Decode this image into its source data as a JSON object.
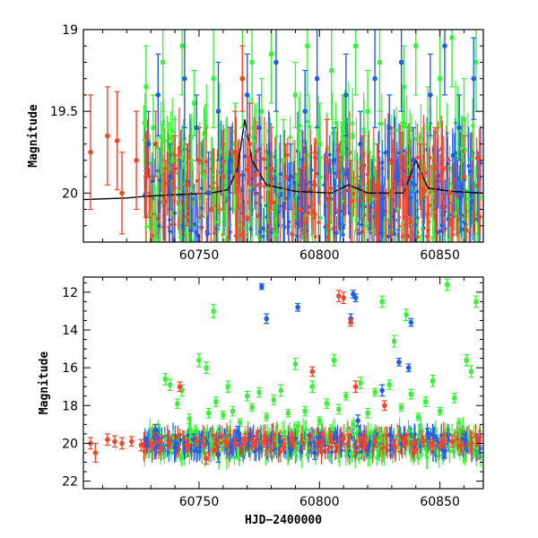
{
  "chart_data": [
    {
      "panel": "top",
      "type": "scatter",
      "title": "",
      "xlabel": "",
      "ylabel": "Magnitude",
      "xlim": [
        60702,
        60868
      ],
      "ylim": [
        20.3,
        19.0
      ],
      "y_inverted": true,
      "xticks": [
        60750,
        60800,
        60850
      ],
      "yticks": [
        19,
        19.5,
        20
      ],
      "ytick_labels": [
        "19",
        "19.5",
        "20"
      ],
      "grid": false,
      "legend": "none",
      "errorbars": true,
      "model_curve": {
        "color": "#000000",
        "x": [
          60702,
          60720,
          60728,
          60740,
          60755,
          60762,
          60766,
          60769,
          60772,
          60778,
          60790,
          60805,
          60812,
          60820,
          60835,
          60840,
          60845,
          60855,
          60868
        ],
        "y": [
          20.04,
          20.03,
          20.02,
          20.01,
          20.0,
          19.98,
          19.85,
          19.55,
          19.8,
          19.95,
          19.99,
          20.0,
          19.95,
          20.0,
          20.0,
          19.8,
          19.97,
          19.99,
          20.0
        ]
      },
      "series": [
        {
          "color": "#3bf03b",
          "marker": "square",
          "x": [
            60728,
            60731,
            60735,
            60740,
            60743,
            60748,
            60752,
            60756,
            60760,
            60765,
            60768,
            60772,
            60776,
            60780,
            60785,
            60790,
            60795,
            60800,
            60805,
            60810,
            60815,
            60820,
            60825,
            60830,
            60835,
            60840,
            60845,
            60850,
            60855,
            60860,
            60865
          ],
          "y": [
            19.35,
            19.6,
            19.2,
            19.8,
            19.1,
            19.45,
            19.9,
            19.3,
            20.1,
            19.7,
            19.3,
            19.2,
            19.5,
            19.15,
            19.8,
            19.4,
            19.1,
            19.7,
            19.25,
            19.6,
            19.1,
            19.5,
            19.2,
            19.8,
            19.35,
            19.1,
            19.6,
            19.3,
            19.05,
            19.55,
            19.2
          ],
          "err": [
            0.25,
            0.2,
            0.3,
            0.25,
            0.3,
            0.2,
            0.25,
            0.3,
            0.2,
            0.25,
            0.3,
            0.25,
            0.2,
            0.3,
            0.25,
            0.2,
            0.3,
            0.25,
            0.3,
            0.2,
            0.3,
            0.25,
            0.3,
            0.2,
            0.25,
            0.3,
            0.25,
            0.3,
            0.3,
            0.25,
            0.3
          ]
        },
        {
          "color": "#1e5fe8",
          "marker": "circle",
          "x": [
            60729,
            60733,
            60738,
            60744,
            60749,
            60754,
            60758,
            60763,
            60770,
            60775,
            60782,
            60788,
            60794,
            60799,
            60806,
            60811,
            60817,
            60823,
            60829,
            60834,
            60839,
            60846,
            60852,
            60858,
            60864
          ],
          "y": [
            19.7,
            19.4,
            19.9,
            19.3,
            19.6,
            20.0,
            19.5,
            19.8,
            19.4,
            19.6,
            19.2,
            19.9,
            19.5,
            19.3,
            19.8,
            19.4,
            19.7,
            19.3,
            19.6,
            19.2,
            19.8,
            19.4,
            19.1,
            19.6,
            19.3
          ],
          "err": [
            0.2,
            0.25,
            0.2,
            0.3,
            0.2,
            0.25,
            0.3,
            0.2,
            0.25,
            0.2,
            0.3,
            0.2,
            0.25,
            0.3,
            0.2,
            0.25,
            0.2,
            0.3,
            0.2,
            0.3,
            0.2,
            0.25,
            0.3,
            0.2,
            0.25
          ]
        },
        {
          "color": "#f5452d",
          "marker": "circle",
          "x": [
            60705,
            60712,
            60716,
            60718,
            60724,
            60728,
            60732,
            60736,
            60740,
            60745,
            60750,
            60755,
            60760,
            60765,
            60768,
            60771,
            60775,
            60780,
            60786,
            60792,
            60798,
            60803,
            60808,
            60813,
            60818,
            60824,
            60830,
            60836,
            60842,
            60848,
            60854,
            60860,
            60866
          ],
          "y": [
            19.75,
            19.65,
            19.68,
            20.0,
            19.8,
            19.9,
            19.7,
            20.05,
            19.85,
            19.95,
            19.8,
            20.1,
            19.9,
            19.75,
            19.3,
            19.7,
            19.95,
            19.85,
            19.9,
            20.1,
            19.95,
            19.8,
            19.9,
            20.05,
            19.85,
            19.95,
            19.8,
            20.0,
            19.9,
            19.85,
            20.0,
            19.9,
            19.95
          ],
          "err": [
            0.35,
            0.3,
            0.3,
            0.25,
            0.3,
            0.25,
            0.2,
            0.25,
            0.2,
            0.25,
            0.2,
            0.25,
            0.2,
            0.25,
            0.2,
            0.25,
            0.2,
            0.25,
            0.2,
            0.25,
            0.2,
            0.25,
            0.2,
            0.25,
            0.2,
            0.25,
            0.2,
            0.25,
            0.2,
            0.25,
            0.2,
            0.25,
            0.2
          ]
        }
      ]
    },
    {
      "panel": "bottom",
      "type": "scatter",
      "title": "",
      "xlabel": "HJD−2400000",
      "ylabel": "Magnitude",
      "xlim": [
        60702,
        60868
      ],
      "ylim": [
        22.4,
        11.2
      ],
      "y_inverted": true,
      "xticks": [
        60750,
        60800,
        60850
      ],
      "yticks": [
        12,
        14,
        16,
        18,
        20,
        22
      ],
      "ytick_labels": [
        "12",
        "14",
        "16",
        "18",
        "20",
        "22"
      ],
      "grid": false,
      "legend": "none",
      "errorbars": true,
      "series": [
        {
          "color": "#3bf03b",
          "marker": "square",
          "x": [
            60736,
            60738,
            60741,
            60743,
            60746,
            60749,
            60750,
            60753,
            60754,
            60756,
            60757,
            60760,
            60762,
            60764,
            60767,
            60770,
            60772,
            60775,
            60778,
            60781,
            60784,
            60787,
            60790,
            60791,
            60794,
            60797,
            60800,
            60803,
            60806,
            60808,
            60811,
            60814,
            60817,
            60820,
            60823,
            60826,
            60829,
            60831,
            60834,
            60836,
            60838,
            60841,
            60844,
            60847,
            60850,
            60853,
            60856,
            60858,
            60861,
            60863,
            60865
          ],
          "y": [
            16.6,
            16.9,
            17.9,
            17.2,
            18.7,
            19.6,
            15.6,
            16.0,
            18.4,
            13.0,
            17.8,
            18.5,
            17.0,
            18.3,
            18.9,
            17.5,
            18.1,
            17.3,
            18.6,
            17.7,
            17.2,
            18.4,
            15.8,
            19.1,
            18.3,
            17.0,
            18.8,
            17.9,
            15.6,
            18.2,
            17.5,
            19.0,
            16.8,
            18.4,
            17.3,
            12.5,
            16.9,
            14.6,
            18.1,
            13.2,
            17.4,
            18.6,
            17.8,
            16.7,
            18.3,
            11.6,
            17.6,
            18.9,
            15.6,
            16.2,
            12.5
          ],
          "err": [
            0.3,
            0.3,
            0.25,
            0.3,
            0.25,
            0.2,
            0.35,
            0.3,
            0.25,
            0.35,
            0.25,
            0.2,
            0.3,
            0.25,
            0.2,
            0.25,
            0.2,
            0.25,
            0.2,
            0.25,
            0.3,
            0.2,
            0.3,
            0.2,
            0.25,
            0.3,
            0.2,
            0.25,
            0.3,
            0.25,
            0.2,
            0.2,
            0.3,
            0.25,
            0.2,
            0.3,
            0.25,
            0.3,
            0.2,
            0.3,
            0.25,
            0.2,
            0.25,
            0.3,
            0.2,
            0.3,
            0.25,
            0.2,
            0.3,
            0.3,
            0.3
          ]
        },
        {
          "color": "#1e5fe8",
          "marker": "circle",
          "x": [
            60732,
            60740,
            60748,
            60758,
            60766,
            60776,
            60778,
            60784,
            60791,
            60798,
            60806,
            60813,
            60814,
            60815,
            60816,
            60820,
            60826,
            60833,
            60837,
            60838,
            60845,
            60852,
            60860
          ],
          "y": [
            19.3,
            20.2,
            19.8,
            20.6,
            19.4,
            11.7,
            13.4,
            19.9,
            12.8,
            20.5,
            19.7,
            13.4,
            12.1,
            12.3,
            18.8,
            20.3,
            17.2,
            15.7,
            16.0,
            13.6,
            19.5,
            20.4,
            19.8
          ],
          "err": [
            0.3,
            0.3,
            0.3,
            0.4,
            0.3,
            0.15,
            0.25,
            0.3,
            0.2,
            0.35,
            0.3,
            0.25,
            0.2,
            0.2,
            0.3,
            0.35,
            0.3,
            0.2,
            0.2,
            0.2,
            0.3,
            0.35,
            0.3
          ]
        },
        {
          "color": "#f5452d",
          "marker": "circle",
          "x": [
            60705,
            60707,
            60712,
            60715,
            60718,
            60722,
            60726,
            60730,
            60734,
            60738,
            60742,
            60745,
            60749,
            60753,
            60757,
            60761,
            60765,
            60769,
            60773,
            60777,
            60781,
            60785,
            60789,
            60793,
            60797,
            60801,
            60805,
            60808,
            60810,
            60813,
            60815,
            60819,
            60823,
            60827,
            60831,
            60835,
            60839,
            60843,
            60847,
            60851,
            60855,
            60859,
            60863,
            60866
          ],
          "y": [
            20.0,
            20.5,
            19.8,
            19.9,
            20.0,
            19.9,
            20.1,
            20.0,
            19.9,
            20.0,
            17.0,
            20.1,
            19.9,
            20.8,
            20.0,
            19.9,
            20.0,
            19.8,
            20.1,
            19.9,
            20.0,
            20.1,
            19.9,
            20.0,
            16.2,
            20.1,
            19.9,
            12.2,
            12.3,
            13.6,
            17.0,
            20.0,
            19.9,
            18.0,
            20.1,
            19.9,
            20.0,
            19.9,
            20.1,
            20.0,
            19.9,
            20.1,
            20.0,
            19.9
          ],
          "err": [
            0.3,
            0.5,
            0.3,
            0.3,
            0.3,
            0.25,
            0.3,
            0.25,
            0.3,
            0.25,
            0.25,
            0.3,
            0.25,
            0.3,
            0.25,
            0.3,
            0.25,
            0.3,
            0.25,
            0.3,
            0.25,
            0.3,
            0.25,
            0.3,
            0.25,
            0.3,
            0.25,
            0.3,
            0.3,
            0.2,
            0.3,
            0.25,
            0.3,
            0.25,
            0.3,
            0.25,
            0.3,
            0.25,
            0.3,
            0.25,
            0.3,
            0.25,
            0.3,
            0.25
          ]
        }
      ]
    }
  ]
}
